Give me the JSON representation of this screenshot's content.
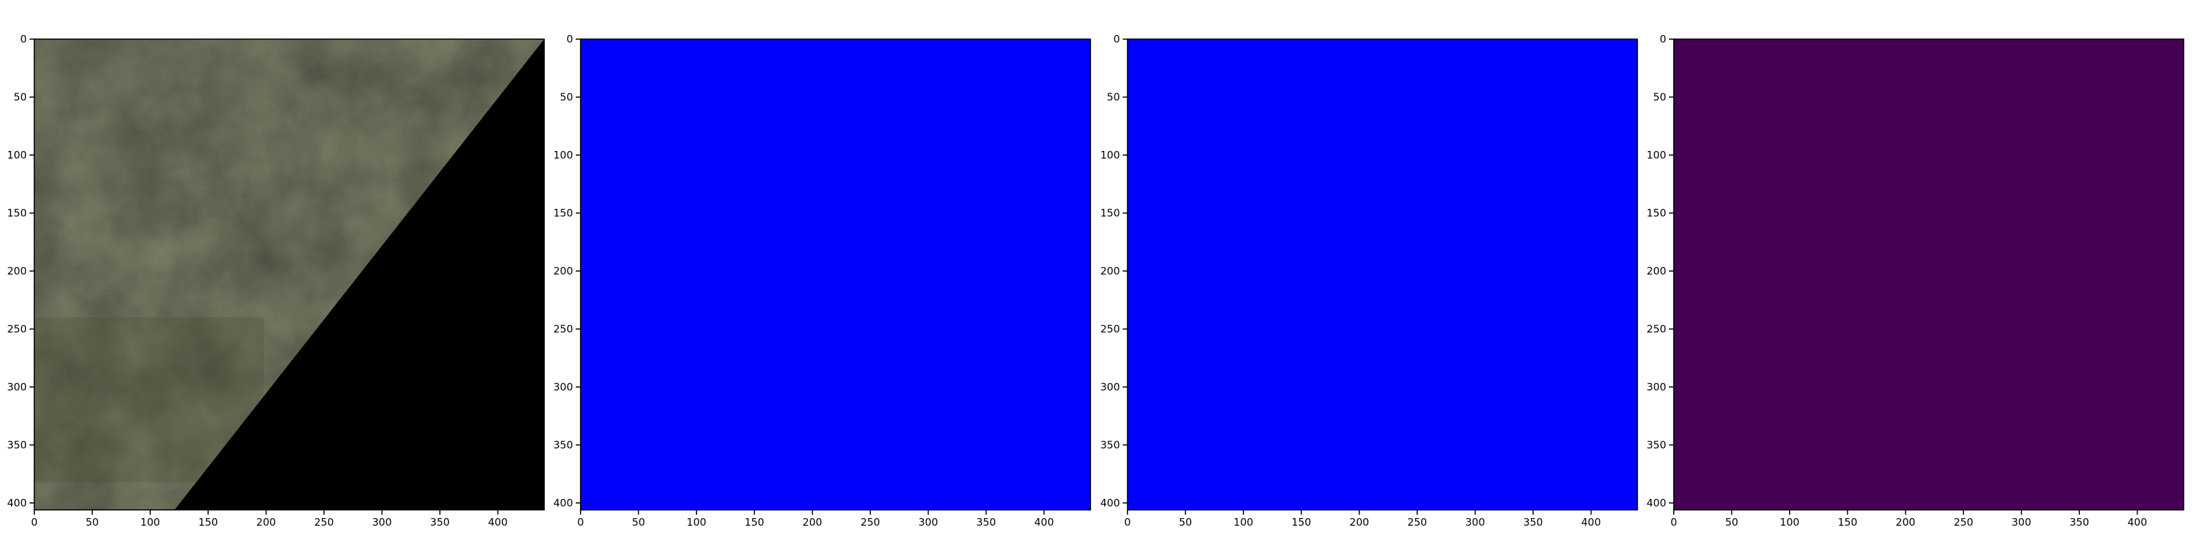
{
  "figure": {
    "panels": [
      {
        "kind": "image",
        "content": "aerial-imagery",
        "palette": {
          "base": "#6f7258",
          "shade": "#5c6149",
          "light": "#8a8c74",
          "nodata": "#000000"
        },
        "nodata_line": {
          "from": [
            440,
            0
          ],
          "to": [
            121,
            406
          ]
        },
        "x_ticks": [
          "0",
          "50",
          "100",
          "150",
          "200",
          "250",
          "300",
          "350",
          "400"
        ],
        "y_ticks": [
          "0",
          "50",
          "100",
          "150",
          "200",
          "250",
          "300",
          "350",
          "400"
        ],
        "x_range": [
          0,
          440
        ],
        "y_range": [
          0,
          406
        ]
      },
      {
        "kind": "fill",
        "fill_color": "#0000ff",
        "x_ticks": [
          "0",
          "50",
          "100",
          "150",
          "200",
          "250",
          "300",
          "350",
          "400"
        ],
        "y_ticks": [
          "0",
          "50",
          "100",
          "150",
          "200",
          "250",
          "300",
          "350",
          "400"
        ],
        "x_range": [
          0,
          440
        ],
        "y_range": [
          0,
          406
        ]
      },
      {
        "kind": "fill",
        "fill_color": "#0000ff",
        "x_ticks": [
          "0",
          "50",
          "100",
          "150",
          "200",
          "250",
          "300",
          "350",
          "400"
        ],
        "y_ticks": [
          "0",
          "50",
          "100",
          "150",
          "200",
          "250",
          "300",
          "350",
          "400"
        ],
        "x_range": [
          0,
          440
        ],
        "y_range": [
          0,
          406
        ]
      },
      {
        "kind": "fill",
        "fill_color": "#440154",
        "x_ticks": [
          "0",
          "50",
          "100",
          "150",
          "200",
          "250",
          "300",
          "350",
          "400"
        ],
        "y_ticks": [
          "0",
          "50",
          "100",
          "150",
          "200",
          "250",
          "300",
          "350",
          "400"
        ],
        "x_range": [
          0,
          440
        ],
        "y_range": [
          0,
          406
        ]
      }
    ]
  }
}
